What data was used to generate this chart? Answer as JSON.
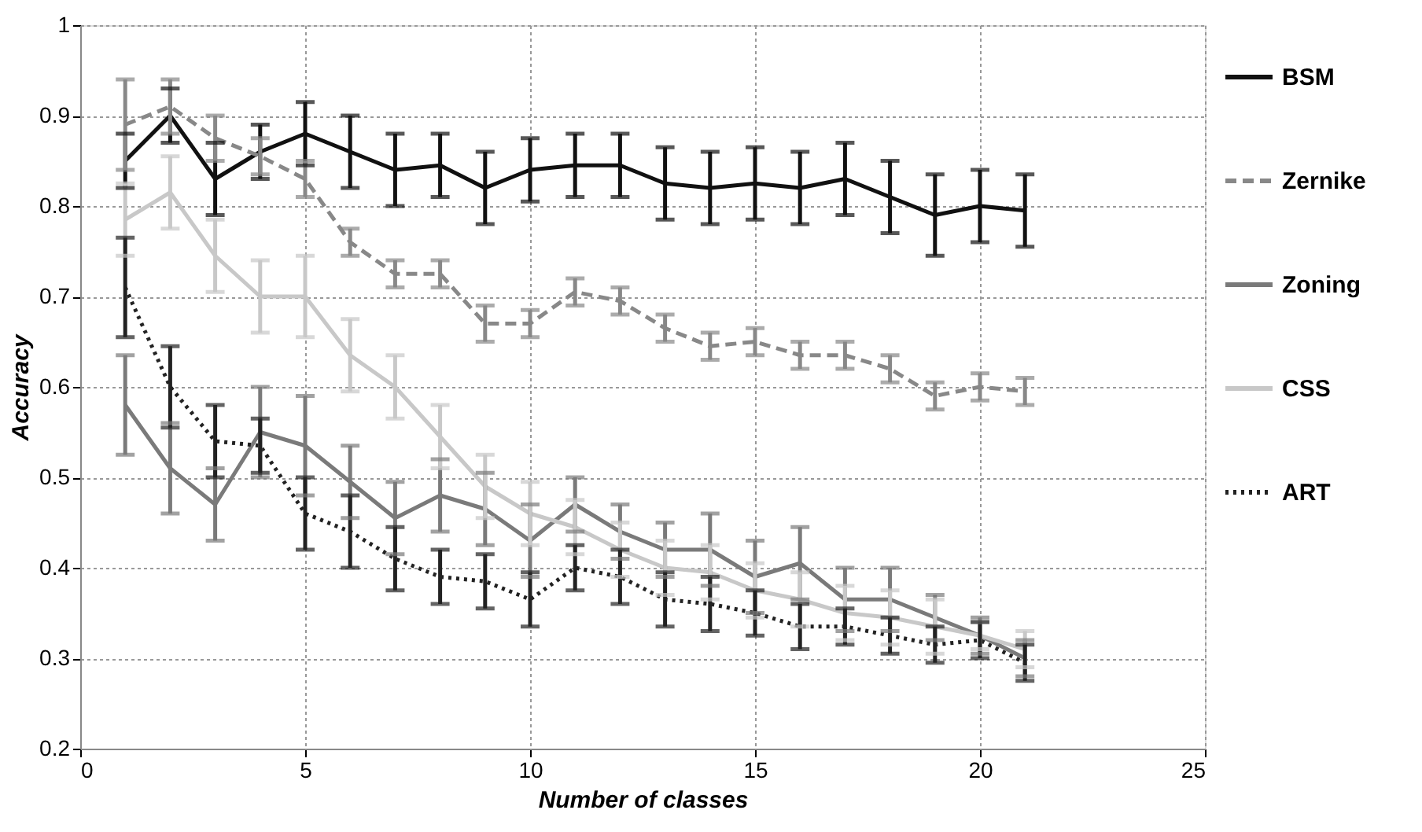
{
  "chart_data": {
    "type": "line",
    "xlabel": "Number of classes",
    "ylabel": "Accuracy",
    "x": [
      1,
      2,
      3,
      4,
      5,
      6,
      7,
      8,
      9,
      10,
      11,
      12,
      13,
      14,
      15,
      16,
      17,
      18,
      19,
      20,
      21
    ],
    "xlim": [
      0,
      25
    ],
    "xticks": [
      0,
      5,
      10,
      15,
      20,
      25
    ],
    "ylim": [
      0.2,
      1
    ],
    "yticks": [
      0.2,
      0.3,
      0.4,
      0.5,
      0.6,
      0.7,
      0.8,
      0.9,
      1
    ],
    "grid": true,
    "legend": "right",
    "marker": "none",
    "series": [
      {
        "name": "BSM",
        "color": "#111111",
        "line_style": "solid",
        "values": [
          0.85,
          0.9,
          0.83,
          0.86,
          0.88,
          0.86,
          0.84,
          0.845,
          0.82,
          0.84,
          0.845,
          0.845,
          0.825,
          0.82,
          0.825,
          0.82,
          0.83,
          0.81,
          0.79,
          0.8,
          0.795
        ],
        "errors": [
          0.03,
          0.03,
          0.04,
          0.03,
          0.035,
          0.04,
          0.04,
          0.035,
          0.04,
          0.035,
          0.035,
          0.035,
          0.04,
          0.04,
          0.04,
          0.04,
          0.04,
          0.04,
          0.045,
          0.04,
          0.04
        ]
      },
      {
        "name": "Zernike",
        "color": "#888888",
        "line_style": "dashed",
        "values": [
          0.89,
          0.91,
          0.875,
          0.855,
          0.83,
          0.76,
          0.725,
          0.725,
          0.67,
          0.67,
          0.705,
          0.695,
          0.665,
          0.645,
          0.65,
          0.635,
          0.635,
          0.62,
          0.59,
          0.6,
          0.595
        ],
        "errors": [
          0.05,
          0.03,
          0.025,
          0.02,
          0.02,
          0.015,
          0.015,
          0.015,
          0.02,
          0.015,
          0.015,
          0.015,
          0.015,
          0.015,
          0.015,
          0.015,
          0.015,
          0.015,
          0.015,
          0.015,
          0.015
        ]
      },
      {
        "name": "Zoning",
        "color": "#7a7a7a",
        "line_style": "solid",
        "values": [
          0.58,
          0.51,
          0.47,
          0.55,
          0.535,
          0.495,
          0.455,
          0.48,
          0.465,
          0.43,
          0.47,
          0.44,
          0.42,
          0.42,
          0.39,
          0.405,
          0.365,
          0.365,
          0.345,
          0.325,
          0.3
        ],
        "errors": [
          0.055,
          0.05,
          0.04,
          0.05,
          0.055,
          0.04,
          0.04,
          0.04,
          0.04,
          0.04,
          0.03,
          0.03,
          0.03,
          0.04,
          0.04,
          0.04,
          0.035,
          0.035,
          0.025,
          0.02,
          0.02
        ]
      },
      {
        "name": "CSS",
        "color": "#c8c8c8",
        "line_style": "solid",
        "values": [
          0.785,
          0.815,
          0.745,
          0.7,
          0.7,
          0.635,
          0.6,
          0.545,
          0.49,
          0.46,
          0.445,
          0.42,
          0.4,
          0.395,
          0.375,
          0.365,
          0.35,
          0.345,
          0.335,
          0.325,
          0.31
        ],
        "errors": [
          0.04,
          0.04,
          0.04,
          0.04,
          0.045,
          0.04,
          0.035,
          0.035,
          0.035,
          0.035,
          0.03,
          0.03,
          0.03,
          0.03,
          0.03,
          0.03,
          0.03,
          0.03,
          0.03,
          0.015,
          0.02
        ]
      },
      {
        "name": "ART",
        "color": "#222222",
        "line_style": "dotted",
        "values": [
          0.71,
          0.6,
          0.54,
          0.535,
          0.46,
          0.44,
          0.41,
          0.39,
          0.385,
          0.365,
          0.4,
          0.39,
          0.365,
          0.36,
          0.35,
          0.335,
          0.335,
          0.325,
          0.315,
          0.32,
          0.295
        ],
        "errors": [
          0.055,
          0.045,
          0.04,
          0.03,
          0.04,
          0.04,
          0.035,
          0.03,
          0.03,
          0.03,
          0.025,
          0.03,
          0.03,
          0.03,
          0.025,
          0.025,
          0.02,
          0.02,
          0.02,
          0.02,
          0.02
        ]
      }
    ]
  }
}
